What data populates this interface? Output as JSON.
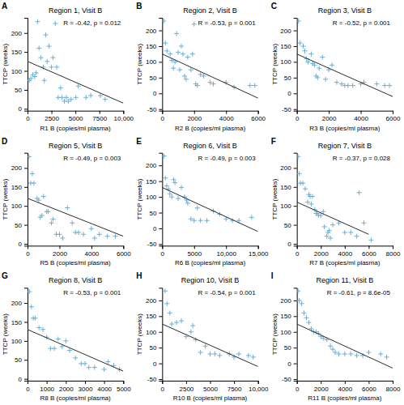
{
  "chart_data": [
    {
      "type": "scatter",
      "panel_label": "A",
      "title": "Region 1, Visit B",
      "annotations": [
        "R = -0.42, p = 0.012"
      ],
      "xlabel": "R1 B (copies/ml plasma)",
      "ylabel": "TTCP (weeks)",
      "xlim": [
        0,
        10000
      ],
      "xticks": [
        0,
        2500,
        5000,
        7500,
        {
          "value": 10000,
          "label": "10,000"
        }
      ],
      "ylim": [
        -5,
        240
      ],
      "yticks": [
        0,
        50,
        100,
        150,
        200
      ],
      "series": [
        {
          "type": "scatter",
          "color": "#6baed6",
          "marker": "+",
          "x": [
            200,
            350,
            550,
            750,
            900,
            1050,
            1200,
            1400,
            1650,
            1750,
            1900,
            2050,
            2250,
            2500,
            2650,
            2900,
            3050,
            3200,
            3450,
            3600,
            3850,
            4050,
            4250,
            4550,
            5050,
            5300,
            6100,
            6600,
            7600,
            8100
          ],
          "values": [
            75,
            80,
            90,
            85,
            95,
            230,
            160,
            135,
            110,
            75,
            195,
            125,
            165,
            110,
            135,
            225,
            110,
            30,
            55,
            30,
            20,
            30,
            20,
            25,
            30,
            60,
            30,
            35,
            35,
            25
          ]
        },
        {
          "type": "line",
          "color": "#2c2c2c",
          "x": [
            0,
            10000
          ],
          "values": [
            125,
            15
          ]
        }
      ]
    },
    {
      "type": "scatter",
      "panel_label": "B",
      "title": "Region 2, Visit B",
      "annotations": [
        "R = -0.53, p = 0.001"
      ],
      "xlabel": "R2 B (copies/ml plasma)",
      "ylabel": "TTCP (weeks)",
      "xlim": [
        0,
        6000
      ],
      "xticks": [
        0,
        2000,
        4000,
        6000
      ],
      "ylim": [
        -55,
        240
      ],
      "yticks": [
        -50,
        0,
        50,
        100,
        150,
        200
      ],
      "series": [
        {
          "type": "scatter",
          "color": "#6baed6",
          "marker": "+",
          "x": [
            100,
            200,
            300,
            500,
            600,
            700,
            800,
            900,
            1000,
            1100,
            1200,
            1300,
            1400,
            1500,
            1600,
            1800,
            1900,
            2000,
            2100,
            2200,
            2400,
            2600,
            3000,
            3200,
            4000,
            4500,
            5500,
            5800
          ],
          "values": [
            230,
            160,
            135,
            125,
            105,
            80,
            100,
            190,
            130,
            75,
            150,
            125,
            55,
            45,
            115,
            75,
            125,
            220,
            30,
            25,
            60,
            55,
            35,
            30,
            35,
            20,
            25,
            25
          ]
        },
        {
          "type": "line",
          "color": "#2c2c2c",
          "x": [
            0,
            6000
          ],
          "values": [
            125,
            -15
          ]
        }
      ]
    },
    {
      "type": "scatter",
      "panel_label": "C",
      "title": "Region 3, Visit B",
      "annotations": [
        "R = -0.52, p = 0.001"
      ],
      "xlabel": "R3 B (copies/ml plasma)",
      "ylabel": "TTCP (weeks)",
      "xlim": [
        0,
        6000
      ],
      "xticks": [
        0,
        2000,
        4000,
        6000
      ],
      "ylim": [
        -55,
        240
      ],
      "yticks": [
        -50,
        0,
        50,
        100,
        150,
        200
      ],
      "series": [
        {
          "type": "scatter",
          "color": "#6baed6",
          "marker": "+",
          "x": [
            100,
            200,
            400,
            500,
            600,
            700,
            900,
            1000,
            1100,
            1200,
            1300,
            1400,
            1600,
            1800,
            2000,
            2200,
            2500,
            2800,
            3000,
            3200,
            3500,
            4000,
            4200,
            5000,
            5500,
            5800
          ],
          "values": [
            230,
            160,
            150,
            135,
            110,
            100,
            125,
            95,
            90,
            55,
            50,
            80,
            115,
            45,
            75,
            90,
            35,
            30,
            25,
            25,
            25,
            30,
            35,
            30,
            25,
            25
          ]
        },
        {
          "type": "line",
          "color": "#2c2c2c",
          "x": [
            0,
            6000
          ],
          "values": [
            125,
            -10
          ]
        }
      ]
    },
    {
      "type": "scatter",
      "panel_label": "D",
      "title": "Region 5, Visit B",
      "annotations": [
        "R = -0.49, p = 0.003"
      ],
      "xlabel": "R5 B (copies/ml plasma)",
      "ylabel": "TTCP (weeks)",
      "xlim": [
        0,
        6000
      ],
      "xticks": [
        0,
        2000,
        4000,
        6000
      ],
      "ylim": [
        -5,
        240
      ],
      "yticks": [
        0,
        50,
        100,
        150,
        200
      ],
      "series": [
        {
          "type": "scatter",
          "color": "#6baed6",
          "marker": "+",
          "x": [
            100,
            200,
            300,
            400,
            600,
            700,
            800,
            900,
            1000,
            1200,
            1300,
            1500,
            1600,
            1800,
            2000,
            2200,
            2500,
            2800,
            3000,
            3200,
            3500,
            4000,
            4200,
            4500,
            5000,
            5500
          ],
          "values": [
            230,
            160,
            185,
            160,
            120,
            115,
            70,
            75,
            125,
            85,
            85,
            55,
            65,
            25,
            25,
            15,
            95,
            55,
            30,
            30,
            25,
            40,
            15,
            25,
            20,
            20
          ]
        },
        {
          "type": "line",
          "color": "#2c2c2c",
          "x": [
            0,
            6000
          ],
          "values": [
            120,
            20
          ]
        }
      ]
    },
    {
      "type": "scatter",
      "panel_label": "E",
      "title": "Region 6, Visit B",
      "annotations": [
        "R = -0.49, p = 0.003"
      ],
      "xlabel": "R6 B (copies/ml plasma)",
      "ylabel": "TTCP (weeks)",
      "xlim": [
        0,
        15000
      ],
      "xticks": [
        0,
        5000,
        {
          "value": 10000,
          "label": "10,000"
        },
        {
          "value": 15000,
          "label": "15,000"
        }
      ],
      "ylim": [
        -55,
        240
      ],
      "yticks": [
        -50,
        0,
        50,
        100,
        150,
        200
      ],
      "series": [
        {
          "type": "scatter",
          "color": "#6baed6",
          "marker": "+",
          "x": [
            300,
            500,
            700,
            1000,
            1200,
            1500,
            1800,
            2000,
            2500,
            3000,
            3500,
            3800,
            4000,
            4500,
            5000,
            5500,
            6000,
            7000,
            8000,
            9000,
            10000,
            11000,
            12000,
            14000
          ],
          "values": [
            230,
            160,
            135,
            125,
            110,
            100,
            155,
            145,
            95,
            130,
            100,
            90,
            80,
            30,
            25,
            65,
            25,
            25,
            55,
            45,
            30,
            25,
            25,
            35
          ]
        },
        {
          "type": "line",
          "color": "#2c2c2c",
          "x": [
            0,
            15000
          ],
          "values": [
            130,
            -10
          ]
        }
      ]
    },
    {
      "type": "scatter",
      "panel_label": "F",
      "title": "Region 7, Visit B",
      "annotations": [
        "R = -0.37, p = 0.028"
      ],
      "xlabel": "R7 B (copies/ml plasma)",
      "ylabel": "TTCP (weeks)",
      "xlim": [
        0,
        8000
      ],
      "xticks": [
        0,
        2000,
        4000,
        6000,
        8000
      ],
      "ylim": [
        -5,
        240
      ],
      "yticks": [
        0,
        50,
        100,
        150,
        200
      ],
      "series": [
        {
          "type": "scatter",
          "color": "#6baed6",
          "marker": "+",
          "x": [
            100,
            200,
            300,
            500,
            700,
            900,
            1000,
            1100,
            1200,
            1300,
            1500,
            1600,
            1700,
            1800,
            2000,
            2200,
            2300,
            2500,
            2600,
            2700,
            2800,
            3000,
            3500,
            4000,
            4500,
            5000,
            5200,
            5600,
            6200
          ],
          "values": [
            230,
            185,
            160,
            160,
            145,
            110,
            130,
            125,
            105,
            125,
            90,
            80,
            80,
            75,
            75,
            85,
            45,
            20,
            30,
            35,
            15,
            50,
            55,
            30,
            30,
            20,
            135,
            55,
            10
          ]
        },
        {
          "type": "line",
          "color": "#2c2c2c",
          "x": [
            0,
            6000
          ],
          "values": [
            110,
            25
          ]
        }
      ]
    },
    {
      "type": "scatter",
      "panel_label": "G",
      "title": "Region 8, Visit B",
      "annotations": [
        "R = -0.53, p = 0.001"
      ],
      "xlabel": "R8 B (copies/ml plasma)",
      "ylabel": "TTCP (weeks)",
      "xlim": [
        0,
        5000
      ],
      "xticks": [
        0,
        1000,
        2000,
        3000,
        4000,
        5000
      ],
      "ylim": [
        -5,
        240
      ],
      "yticks": [
        0,
        50,
        100,
        150,
        200
      ],
      "series": [
        {
          "type": "scatter",
          "color": "#6baed6",
          "marker": "+",
          "x": [
            100,
            200,
            300,
            400,
            600,
            800,
            1000,
            1200,
            1400,
            1600,
            1800,
            2000,
            2200,
            2500,
            2800,
            3000,
            3200,
            3500,
            4000,
            4200,
            4500,
            4800
          ],
          "values": [
            230,
            190,
            160,
            160,
            135,
            130,
            110,
            80,
            80,
            105,
            85,
            100,
            75,
            55,
            40,
            40,
            30,
            30,
            25,
            45,
            35,
            25
          ]
        },
        {
          "type": "line",
          "color": "#2c2c2c",
          "x": [
            0,
            5000
          ],
          "values": [
            130,
            20
          ]
        }
      ]
    },
    {
      "type": "scatter",
      "panel_label": "H",
      "title": "Region 10, Visit B",
      "annotations": [
        "R = -0.54, p = 0.001"
      ],
      "xlabel": "R10 B (copies/ml plasma)",
      "ylabel": "TTCP (weeks)",
      "xlim": [
        0,
        10000
      ],
      "xticks": [
        0,
        2500,
        5000,
        7500,
        {
          "value": 10000,
          "label": "10,000"
        }
      ],
      "ylim": [
        -55,
        240
      ],
      "yticks": [
        -50,
        0,
        50,
        100,
        150,
        200
      ],
      "series": [
        {
          "type": "scatter",
          "color": "#6baed6",
          "marker": "+",
          "x": [
            300,
            500,
            800,
            1000,
            1500,
            2000,
            2500,
            3000,
            3200,
            3500,
            4000,
            4500,
            5000,
            5500,
            6000,
            7000,
            7500,
            8000,
            9000,
            9500
          ],
          "values": [
            230,
            190,
            160,
            125,
            130,
            135,
            85,
            100,
            120,
            75,
            35,
            55,
            30,
            30,
            25,
            30,
            20,
            30,
            25,
            20
          ]
        },
        {
          "type": "line",
          "color": "#2c2c2c",
          "x": [
            0,
            10000
          ],
          "values": [
            125,
            -10
          ]
        }
      ]
    },
    {
      "type": "scatter",
      "panel_label": "I",
      "title": "Region 11, Visit B",
      "annotations": [
        "R = -0.61, p = 8.6e-05"
      ],
      "xlabel": "R11 B (copies/ml plasma)",
      "ylabel": "TTCP (weeks)",
      "xlim": [
        0,
        8000
      ],
      "xticks": [
        0,
        2000,
        4000,
        6000,
        8000
      ],
      "ylim": [
        -55,
        240
      ],
      "yticks": [
        -50,
        0,
        50,
        100,
        150,
        200
      ],
      "series": [
        {
          "type": "scatter",
          "color": "#6baed6",
          "marker": "+",
          "x": [
            100,
            200,
            400,
            600,
            800,
            1000,
            1200,
            1400,
            1600,
            1800,
            2000,
            2200,
            2500,
            2800,
            3000,
            3200,
            3500,
            4000,
            4500,
            5000,
            5500,
            6000,
            7000,
            7500
          ],
          "values": [
            230,
            200,
            190,
            160,
            145,
            130,
            110,
            100,
            100,
            95,
            85,
            80,
            75,
            55,
            45,
            35,
            30,
            30,
            30,
            25,
            25,
            35,
            30,
            20
          ]
        },
        {
          "type": "line",
          "color": "#2c2c2c",
          "x": [
            0,
            8000
          ],
          "values": [
            125,
            -15
          ]
        }
      ]
    }
  ]
}
